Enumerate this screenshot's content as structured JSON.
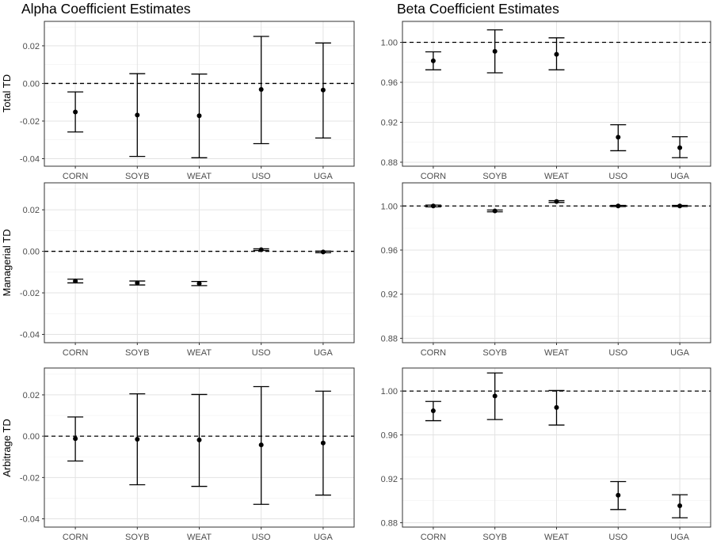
{
  "columns": [
    {
      "title": "Alpha Coefficient Estimates"
    },
    {
      "title": "Beta Coefficient Estimates"
    }
  ],
  "rows": [
    {
      "label": "Total TD"
    },
    {
      "label": "Managerial TD"
    },
    {
      "label": "Arbitrage TD"
    }
  ],
  "chart_data": [
    {
      "type": "errorbar",
      "column": "Alpha Coefficient Estimates",
      "row": "Total TD",
      "categories": [
        "CORN",
        "SOYB",
        "WEAT",
        "USO",
        "UGA"
      ],
      "values": [
        -0.0152,
        -0.0168,
        -0.0172,
        -0.0032,
        -0.0035
      ],
      "lower": [
        -0.0258,
        -0.0388,
        -0.0395,
        -0.032,
        -0.029
      ],
      "upper": [
        -0.0045,
        0.0052,
        0.005,
        0.025,
        0.0215
      ],
      "yticks": [
        "-0.04",
        "-0.02",
        "0.00",
        "0.02"
      ],
      "ylim": [
        -0.044,
        0.033
      ],
      "reference_line": 0.0,
      "grid": true
    },
    {
      "type": "errorbar",
      "column": "Beta Coefficient Estimates",
      "row": "Total TD",
      "categories": [
        "CORN",
        "SOYB",
        "WEAT",
        "USO",
        "UGA"
      ],
      "values": [
        0.9815,
        0.991,
        0.988,
        0.905,
        0.8945
      ],
      "lower": [
        0.9725,
        0.9695,
        0.9725,
        0.8915,
        0.8845
      ],
      "upper": [
        0.9905,
        1.0125,
        1.0045,
        0.9175,
        0.9055
      ],
      "yticks": [
        "0.88",
        "0.92",
        "0.96",
        "1.00"
      ],
      "ylim": [
        0.876,
        1.021
      ],
      "reference_line": 1.0,
      "grid": true
    },
    {
      "type": "errorbar",
      "column": "Alpha Coefficient Estimates",
      "row": "Managerial TD",
      "categories": [
        "CORN",
        "SOYB",
        "WEAT",
        "USO",
        "UGA"
      ],
      "values": [
        -0.0143,
        -0.0152,
        -0.0155,
        0.0008,
        -0.0003
      ],
      "lower": [
        -0.0152,
        -0.0162,
        -0.0165,
        0.0004,
        -0.0007
      ],
      "upper": [
        -0.0134,
        -0.0143,
        -0.0145,
        0.0012,
        0.0001
      ],
      "yticks": [
        "-0.04",
        "-0.02",
        "0.00",
        "0.02"
      ],
      "ylim": [
        -0.044,
        0.033
      ],
      "reference_line": 0.0,
      "grid": true
    },
    {
      "type": "errorbar",
      "column": "Beta Coefficient Estimates",
      "row": "Managerial TD",
      "categories": [
        "CORN",
        "SOYB",
        "WEAT",
        "USO",
        "UGA"
      ],
      "values": [
        1.0,
        0.9955,
        1.004,
        1.0,
        1.0
      ],
      "lower": [
        0.9992,
        0.9947,
        1.0032,
        0.9995,
        0.9995
      ],
      "upper": [
        1.0008,
        0.9963,
        1.0048,
        1.0005,
        1.0005
      ],
      "yticks": [
        "0.88",
        "0.92",
        "0.96",
        "1.00"
      ],
      "ylim": [
        0.876,
        1.021
      ],
      "reference_line": 1.0,
      "grid": true
    },
    {
      "type": "errorbar",
      "column": "Alpha Coefficient Estimates",
      "row": "Arbitrage TD",
      "categories": [
        "CORN",
        "SOYB",
        "WEAT",
        "USO",
        "UGA"
      ],
      "values": [
        -0.0012,
        -0.0015,
        -0.0018,
        -0.0042,
        -0.0033
      ],
      "lower": [
        -0.012,
        -0.0235,
        -0.0243,
        -0.033,
        -0.0285
      ],
      "upper": [
        0.0093,
        0.0205,
        0.0202,
        0.024,
        0.0218
      ],
      "yticks": [
        "-0.04",
        "-0.02",
        "0.00",
        "0.02"
      ],
      "ylim": [
        -0.044,
        0.033
      ],
      "reference_line": 0.0,
      "grid": true
    },
    {
      "type": "errorbar",
      "column": "Beta Coefficient Estimates",
      "row": "Arbitrage TD",
      "categories": [
        "CORN",
        "SOYB",
        "WEAT",
        "USO",
        "UGA"
      ],
      "values": [
        0.982,
        0.9955,
        0.985,
        0.905,
        0.8955
      ],
      "lower": [
        0.973,
        0.974,
        0.969,
        0.892,
        0.8845
      ],
      "upper": [
        0.9905,
        1.0165,
        1.0005,
        0.9175,
        0.9055
      ],
      "yticks": [
        "0.88",
        "0.92",
        "0.96",
        "1.00"
      ],
      "ylim": [
        0.876,
        1.021
      ],
      "reference_line": 1.0,
      "grid": true
    }
  ]
}
